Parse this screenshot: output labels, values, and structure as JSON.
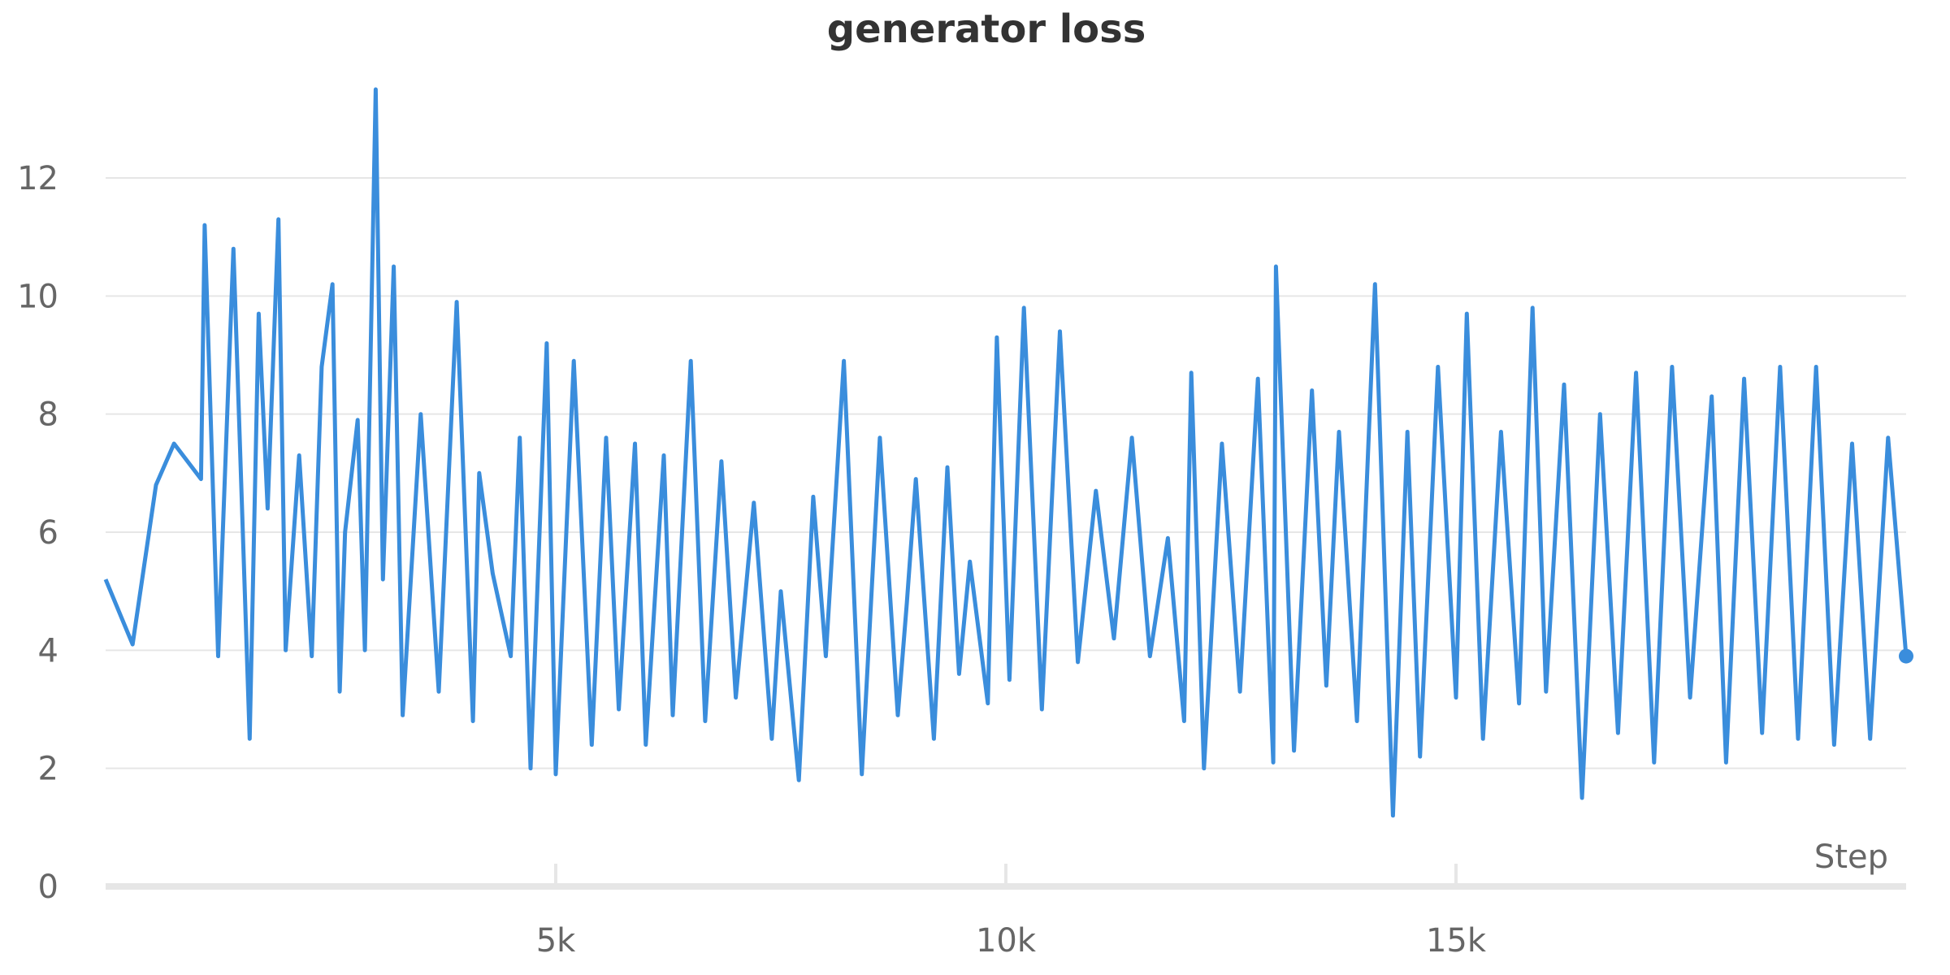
{
  "chart_data": {
    "type": "line",
    "title": "generator loss",
    "xlabel": "Step",
    "ylabel": "",
    "xlim": [
      0,
      20000
    ],
    "ylim": [
      0,
      13.5
    ],
    "x_ticks": [
      5000,
      10000,
      15000
    ],
    "x_tick_labels": [
      "5k",
      "10k",
      "15k"
    ],
    "y_ticks": [
      0,
      2,
      4,
      6,
      8,
      10,
      12
    ],
    "y_tick_labels": [
      "0",
      "2",
      "4",
      "6",
      "8",
      "10",
      "12"
    ],
    "grid": true,
    "legend": "none",
    "colors": {
      "line": "#3a8ddc",
      "grid": "#e6e6e6",
      "text": "#666666",
      "title": "#333333"
    },
    "series": [
      {
        "x": [
          0,
          300,
          560,
          760,
          1060,
          1100,
          1250,
          1420,
          1600,
          1700,
          1800,
          1920,
          2000,
          2150,
          2290,
          2400,
          2520,
          2600,
          2660,
          2800,
          2880,
          3000,
          3080,
          3200,
          3300,
          3500,
          3700,
          3900,
          4080,
          4150,
          4300,
          4500,
          4600,
          4720,
          4900,
          5000,
          5200,
          5400,
          5560,
          5700,
          5880,
          6000,
          6200,
          6300,
          6500,
          6660,
          6840,
          7000,
          7200,
          7400,
          7500,
          7700,
          7860,
          8000,
          8200,
          8400,
          8600,
          8800,
          8900,
          9000,
          9200,
          9350,
          9480,
          9600,
          9800,
          9900,
          10040,
          10200,
          10400,
          10600,
          10800,
          11000,
          11200,
          11400,
          11600,
          11800,
          11980,
          12060,
          12200,
          12400,
          12600,
          12800,
          12970,
          13000,
          13200,
          13400,
          13560,
          13700,
          13900,
          14100,
          14300,
          14460,
          14600,
          14800,
          15000,
          15120,
          15300,
          15500,
          15700,
          15850,
          16000,
          16200,
          16400,
          16600,
          16800,
          17000,
          17200,
          17400,
          17600,
          17840,
          18000,
          18200,
          18400,
          18600,
          18800,
          19000,
          19200,
          19400,
          19600,
          19800,
          20000
        ],
        "y": [
          5.2,
          4.1,
          6.8,
          7.5,
          6.9,
          11.2,
          3.9,
          10.8,
          2.5,
          9.7,
          6.4,
          11.3,
          4.0,
          7.3,
          3.9,
          8.8,
          10.2,
          3.3,
          6.0,
          7.9,
          4.0,
          13.5,
          5.2,
          10.5,
          2.9,
          8.0,
          3.3,
          9.9,
          2.8,
          7.0,
          5.3,
          3.9,
          7.6,
          2.0,
          9.2,
          1.9,
          8.9,
          2.4,
          7.6,
          3.0,
          7.5,
          2.4,
          7.3,
          2.9,
          8.9,
          2.8,
          7.2,
          3.2,
          6.5,
          2.5,
          5.0,
          1.8,
          6.6,
          3.9,
          8.9,
          1.9,
          7.6,
          2.9,
          4.8,
          6.9,
          2.5,
          7.1,
          3.6,
          5.5,
          3.1,
          9.3,
          3.5,
          9.8,
          3.0,
          9.4,
          3.8,
          6.7,
          4.2,
          7.6,
          3.9,
          5.9,
          2.8,
          8.7,
          2.0,
          7.5,
          3.3,
          8.6,
          2.1,
          10.5,
          2.3,
          8.4,
          3.4,
          7.7,
          2.8,
          10.2,
          1.2,
          7.7,
          2.2,
          8.8,
          3.2,
          9.7,
          2.5,
          7.7,
          3.1,
          9.8,
          3.3,
          8.5,
          1.5,
          8.0,
          2.6,
          8.7,
          2.1,
          8.8,
          3.2,
          8.3,
          2.1,
          8.6,
          2.6,
          8.8,
          2.5,
          8.8,
          2.4,
          7.5,
          2.5,
          7.6,
          3.9
        ]
      }
    ]
  }
}
